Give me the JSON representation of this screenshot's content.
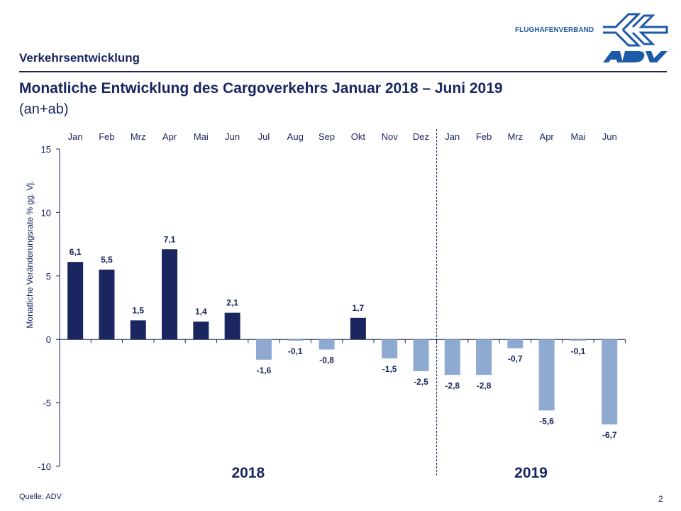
{
  "header": {
    "section": "Verkehrsentwicklung",
    "title": "Monatliche Entwicklung des Cargoverkehrs  Januar 2018 – Juni 2019",
    "subtitle": "(an+ab)",
    "brand_text": "FLUGHAFENVERBAND",
    "logo_text": "ADV"
  },
  "footer": {
    "source": "Quelle: ADV",
    "page": "2"
  },
  "colors": {
    "positive": "#1a2660",
    "negative": "#8eaad0",
    "text": "#1a2660",
    "brand": "#1d5aa8"
  },
  "chart_data": {
    "type": "bar",
    "title": "",
    "ylabel": "Monatliche Veränderungsrate % gg. Vj.",
    "ylim": [
      -10,
      15
    ],
    "yticks": [
      -10,
      -5,
      0,
      5,
      10,
      15
    ],
    "categories": [
      "Jan",
      "Feb",
      "Mrz",
      "Apr",
      "Mai",
      "Jun",
      "Jul",
      "Aug",
      "Sep",
      "Okt",
      "Nov",
      "Dez",
      "Jan",
      "Feb",
      "Mrz",
      "Apr",
      "Mai",
      "Jun"
    ],
    "values": [
      6.1,
      5.5,
      1.5,
      7.1,
      1.4,
      2.1,
      -1.6,
      -0.1,
      -0.8,
      1.7,
      -1.5,
      -2.5,
      -2.8,
      -2.8,
      -0.7,
      -5.6,
      -0.1,
      -6.7
    ],
    "data_labels": [
      "6,1",
      "5,5",
      "1,5",
      "7,1",
      "1,4",
      "2,1",
      "-1,6",
      "-0,1",
      "-0,8",
      "1,7",
      "-1,5",
      "-2,5",
      "-2,8",
      "-2,8",
      "-0,7",
      "-5,6",
      "-0,1",
      "-6,7"
    ],
    "groups": [
      {
        "label": "2018",
        "count": 12
      },
      {
        "label": "2019",
        "count": 6
      }
    ],
    "grid": false,
    "legend": "none"
  }
}
